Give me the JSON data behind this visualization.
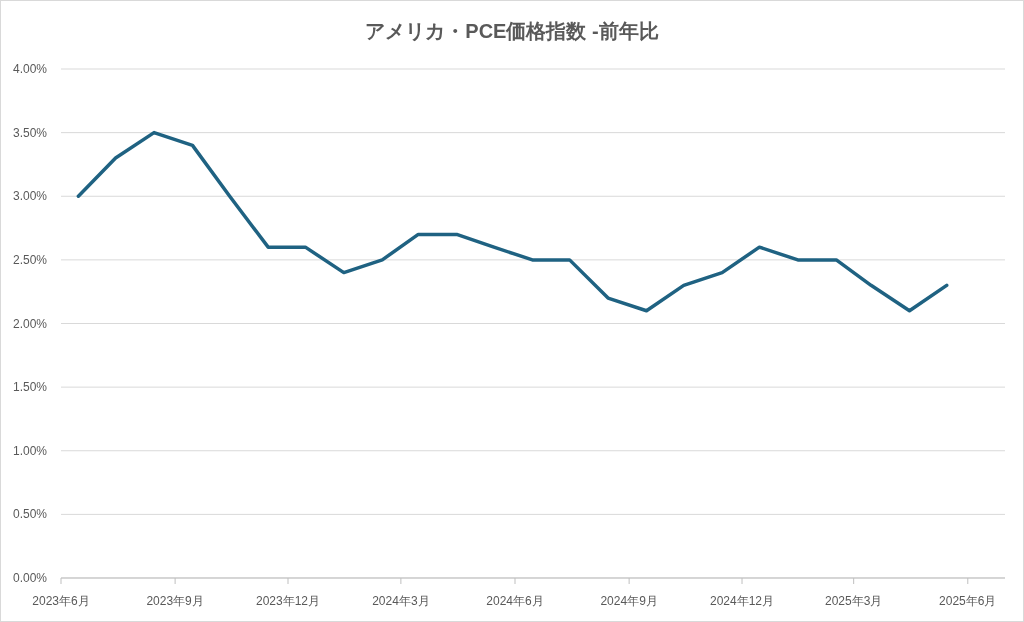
{
  "chart_data": {
    "type": "line",
    "title": "アメリカ・PCE価格指数 -前年比",
    "x": [
      "2023-06-15",
      "2023-07-15",
      "2023-08-15",
      "2023-09-15",
      "2023-10-15",
      "2023-11-15",
      "2023-12-15",
      "2024-01-15",
      "2024-02-15",
      "2024-03-15",
      "2024-04-15",
      "2024-05-15",
      "2024-06-15",
      "2024-07-15",
      "2024-08-15",
      "2024-09-15",
      "2024-10-15",
      "2024-11-15",
      "2024-12-15",
      "2025-01-15",
      "2025-02-15",
      "2025-03-15",
      "2025-04-15",
      "2025-05-15"
    ],
    "series": [
      {
        "color": "#1f6282",
        "values": [
          3.0,
          3.3,
          3.5,
          3.4,
          3.0,
          2.6,
          2.6,
          2.4,
          2.5,
          2.7,
          2.7,
          2.6,
          2.5,
          2.5,
          2.2,
          2.1,
          2.3,
          2.4,
          2.6,
          2.5,
          2.5,
          2.3,
          2.1,
          2.3
        ]
      }
    ],
    "xlim": [
      "2023-06-01",
      "2025-07-01"
    ],
    "xticks": [
      {
        "value": "2023-06-01",
        "label": "2023年6月"
      },
      {
        "value": "2023-09-01",
        "label": "2023年9月"
      },
      {
        "value": "2023-12-01",
        "label": "2023年12月"
      },
      {
        "value": "2024-03-01",
        "label": "2024年3月"
      },
      {
        "value": "2024-06-01",
        "label": "2024年6月"
      },
      {
        "value": "2024-09-01",
        "label": "2024年9月"
      },
      {
        "value": "2024-12-01",
        "label": "2024年12月"
      },
      {
        "value": "2025-03-01",
        "label": "2025年3月"
      },
      {
        "value": "2025-06-01",
        "label": "2025年6月"
      }
    ],
    "ylim": [
      0,
      4
    ],
    "yticks": [
      {
        "value": 0,
        "label": "0.00%"
      },
      {
        "value": 0.5,
        "label": "0.50%"
      },
      {
        "value": 1,
        "label": "1.00%"
      },
      {
        "value": 1.5,
        "label": "1.50%"
      },
      {
        "value": 2,
        "label": "2.00%"
      },
      {
        "value": 2.5,
        "label": "2.50%"
      },
      {
        "value": 3,
        "label": "3.00%"
      },
      {
        "value": 3.5,
        "label": "3.50%"
      },
      {
        "value": 4,
        "label": "4.00%"
      }
    ],
    "grid": "y",
    "marker": "none",
    "line_style": "solid"
  }
}
